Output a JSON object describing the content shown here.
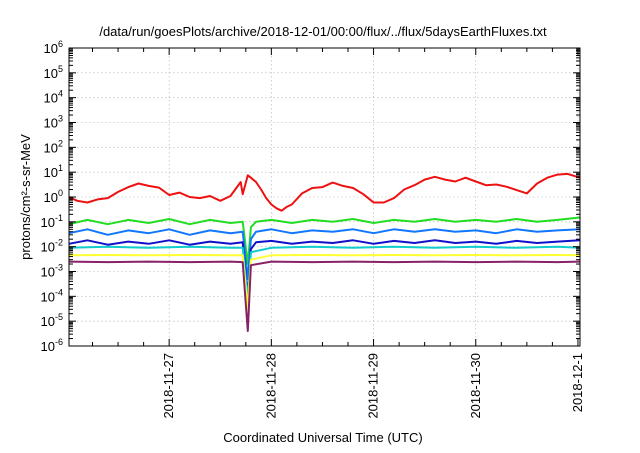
{
  "chart_data": {
    "type": "line",
    "title": "/data/run/goesPlots/archive/2018-12-01/00:00/flux/../flux/5daysEarthFluxes.txt",
    "xlabel": "Coordinated Universal Time (UTC)",
    "ylabel": "protons/cm²-s-sr-MeV",
    "yscale": "log",
    "ylim": [
      1e-06,
      1000000.0
    ],
    "xlim": [
      -0.98,
      4.02
    ],
    "grid": true,
    "x_ticks": [
      {
        "x": 0,
        "label": "2018-11-27"
      },
      {
        "x": 1,
        "label": "2018-11-28"
      },
      {
        "x": 2,
        "label": "2018-11-29"
      },
      {
        "x": 3,
        "label": "2018-11-30"
      },
      {
        "x": 4,
        "label": "2018-12-1"
      }
    ],
    "y_ticks": [
      {
        "exp": -6,
        "label": "10",
        "sup": "-6"
      },
      {
        "exp": -5,
        "label": "10",
        "sup": "-5"
      },
      {
        "exp": -4,
        "label": "10",
        "sup": "-4"
      },
      {
        "exp": -3,
        "label": "10",
        "sup": "-3"
      },
      {
        "exp": -2,
        "label": "10",
        "sup": "-2"
      },
      {
        "exp": -1,
        "label": "10",
        "sup": "-1"
      },
      {
        "exp": 0,
        "label": "10",
        "sup": "0"
      },
      {
        "exp": 1,
        "label": "10",
        "sup": "1"
      },
      {
        "exp": 2,
        "label": "10",
        "sup": "2"
      },
      {
        "exp": 3,
        "label": "10",
        "sup": "3"
      },
      {
        "exp": 4,
        "label": "10",
        "sup": "4"
      },
      {
        "exp": 5,
        "label": "10",
        "sup": "5"
      },
      {
        "exp": 6,
        "label": "10",
        "sup": "6"
      }
    ],
    "series": [
      {
        "color": "#ee1111",
        "width": 2,
        "x": [
          -0.98,
          -0.9,
          -0.8,
          -0.7,
          -0.6,
          -0.5,
          -0.4,
          -0.3,
          -0.2,
          -0.1,
          0,
          0.1,
          0.2,
          0.3,
          0.4,
          0.5,
          0.6,
          0.7,
          0.72,
          0.77,
          0.8,
          0.85,
          0.9,
          0.95,
          1,
          1.05,
          1.1,
          1.15,
          1.2,
          1.3,
          1.4,
          1.5,
          1.6,
          1.7,
          1.8,
          1.9,
          2,
          2.1,
          2.2,
          2.3,
          2.4,
          2.5,
          2.6,
          2.7,
          2.8,
          2.9,
          3,
          3.1,
          3.2,
          3.3,
          3.4,
          3.5,
          3.6,
          3.7,
          3.8,
          3.9,
          4.02
        ],
        "y": [
          1.0,
          0.7,
          0.6,
          0.8,
          0.9,
          1.6,
          2.5,
          3.5,
          2.8,
          2.4,
          1.2,
          1.5,
          1.0,
          0.9,
          1.1,
          0.7,
          1.1,
          4.0,
          1.3,
          7.5,
          6.0,
          4.0,
          2.0,
          0.9,
          0.5,
          0.35,
          0.28,
          0.4,
          0.5,
          1.4,
          2.3,
          2.5,
          3.8,
          2.8,
          2.3,
          1.3,
          0.6,
          0.6,
          0.9,
          2.0,
          3.0,
          5.0,
          6.5,
          5.0,
          4.2,
          6.0,
          4.2,
          3.0,
          3.2,
          2.6,
          1.9,
          1.4,
          3.5,
          6.0,
          8.0,
          8.5,
          6.0
        ]
      },
      {
        "color": "#22dd22",
        "width": 2,
        "x": [
          -0.98,
          -0.8,
          -0.6,
          -0.4,
          -0.2,
          0,
          0.2,
          0.4,
          0.6,
          0.72,
          0.77,
          0.8,
          0.85,
          1,
          1.2,
          1.4,
          1.6,
          1.8,
          2,
          2.2,
          2.4,
          2.6,
          2.8,
          3,
          3.2,
          3.4,
          3.6,
          3.8,
          4.02
        ],
        "y": [
          0.08,
          0.12,
          0.08,
          0.12,
          0.09,
          0.13,
          0.08,
          0.12,
          0.09,
          0.1,
          0.002,
          0.06,
          0.1,
          0.12,
          0.09,
          0.12,
          0.1,
          0.13,
          0.09,
          0.12,
          0.1,
          0.13,
          0.1,
          0.12,
          0.1,
          0.13,
          0.1,
          0.12,
          0.15
        ]
      },
      {
        "color": "#1177ff",
        "width": 2,
        "x": [
          -0.98,
          -0.8,
          -0.6,
          -0.4,
          -0.2,
          0,
          0.2,
          0.4,
          0.6,
          0.72,
          0.77,
          0.8,
          0.85,
          1,
          1.2,
          1.4,
          1.6,
          1.8,
          2,
          2.2,
          2.4,
          2.6,
          2.8,
          3,
          3.2,
          3.4,
          3.6,
          3.8,
          4.02
        ],
        "y": [
          0.035,
          0.05,
          0.03,
          0.045,
          0.035,
          0.05,
          0.03,
          0.045,
          0.035,
          0.04,
          0.0005,
          0.02,
          0.04,
          0.05,
          0.035,
          0.045,
          0.04,
          0.05,
          0.035,
          0.05,
          0.04,
          0.05,
          0.04,
          0.045,
          0.035,
          0.05,
          0.04,
          0.045,
          0.05
        ]
      },
      {
        "color": "#1111cc",
        "width": 2,
        "x": [
          -0.98,
          -0.8,
          -0.6,
          -0.4,
          -0.2,
          0,
          0.2,
          0.4,
          0.6,
          0.72,
          0.77,
          0.8,
          0.85,
          1,
          1.2,
          1.4,
          1.6,
          1.8,
          2,
          2.2,
          2.4,
          2.6,
          2.8,
          3,
          3.2,
          3.4,
          3.6,
          3.8,
          4.02
        ],
        "y": [
          0.013,
          0.018,
          0.012,
          0.016,
          0.013,
          0.018,
          0.012,
          0.016,
          0.013,
          0.015,
          0.0001,
          0.008,
          0.015,
          0.017,
          0.013,
          0.016,
          0.014,
          0.018,
          0.013,
          0.017,
          0.014,
          0.018,
          0.014,
          0.016,
          0.013,
          0.017,
          0.014,
          0.016,
          0.018
        ]
      },
      {
        "color": "#11cccc",
        "width": 2,
        "x": [
          -0.98,
          -0.6,
          -0.2,
          0.2,
          0.6,
          0.72,
          0.77,
          0.8,
          1,
          1.4,
          1.8,
          2.2,
          2.6,
          3,
          3.4,
          3.8,
          4.02
        ],
        "y": [
          0.009,
          0.01,
          0.009,
          0.01,
          0.009,
          0.009,
          7e-05,
          0.006,
          0.009,
          0.01,
          0.009,
          0.01,
          0.009,
          0.01,
          0.009,
          0.01,
          0.009
        ]
      },
      {
        "color": "#ffff33",
        "width": 2,
        "x": [
          -0.98,
          -0.6,
          -0.2,
          0.2,
          0.6,
          0.72,
          0.77,
          0.8,
          1,
          1.4,
          1.8,
          2.2,
          2.6,
          3,
          3.4,
          3.8,
          4.02
        ],
        "y": [
          0.0045,
          0.0046,
          0.0045,
          0.0046,
          0.0045,
          0.0045,
          3e-05,
          0.003,
          0.0045,
          0.0046,
          0.0045,
          0.0046,
          0.0045,
          0.0046,
          0.0045,
          0.0046,
          0.0045
        ]
      },
      {
        "color": "#882266",
        "width": 2,
        "x": [
          -0.98,
          -0.6,
          -0.2,
          0.2,
          0.6,
          0.72,
          0.77,
          0.8,
          1,
          1.4,
          1.8,
          2.2,
          2.6,
          3,
          3.4,
          3.8,
          4.02
        ],
        "y": [
          0.0025,
          0.0024,
          0.0025,
          0.0024,
          0.0025,
          0.0024,
          4e-06,
          0.0018,
          0.0025,
          0.0024,
          0.0025,
          0.0024,
          0.0025,
          0.0024,
          0.0025,
          0.0024,
          0.0025
        ]
      }
    ]
  }
}
